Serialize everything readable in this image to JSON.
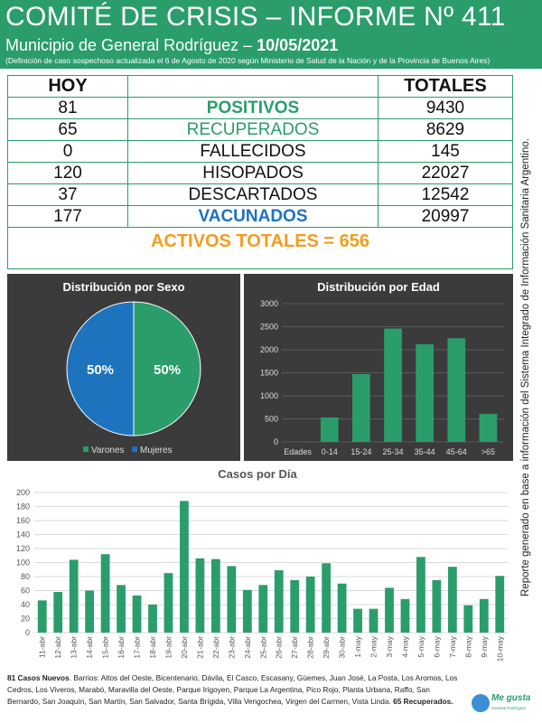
{
  "header": {
    "title": "COMITÉ DE CRISIS – INFORME Nº 411",
    "subtitle_prefix": "Municipio de General Rodríguez – ",
    "date": "10/05/2021",
    "note": "(Definición de caso sospechoso actualizada el 6 de Agosto de 2020 según Ministerio de Salud de la Nación y de la Provincia de Buenos Aires)"
  },
  "summary": {
    "col_hoy": "HOY",
    "col_totales": "TOTALES",
    "rows": [
      {
        "hoy": "81",
        "label": "POSITIVOS",
        "total": "9430"
      },
      {
        "hoy": "65",
        "label": "RECUPERADOS",
        "total": "8629"
      },
      {
        "hoy": "0",
        "label": "FALLECIDOS",
        "total": "145"
      },
      {
        "hoy": "120",
        "label": "HISOPADOS",
        "total": "22027"
      },
      {
        "hoy": "37",
        "label": "DESCARTADOS",
        "total": "12542"
      },
      {
        "hoy": "177",
        "label": "VACUNADOS",
        "total": "20997"
      }
    ],
    "activos": "ACTIVOS TOTALES = 656"
  },
  "colors": {
    "green": "#2a9d6b",
    "blue": "#1e73be",
    "orange": "#f39c1f",
    "panel": "#3b3b3b"
  },
  "chart_data": [
    {
      "type": "pie",
      "title": "Distribución por Sexo",
      "categories": [
        "Varones",
        "Mujeres"
      ],
      "values": [
        50,
        50
      ],
      "labels": [
        "50%",
        "50%"
      ],
      "colors": [
        "#2a9d6b",
        "#1e73be"
      ],
      "legend": "bottom"
    },
    {
      "type": "bar",
      "title": "Distribución por Edad",
      "categories": [
        "Edades",
        "0-14",
        "15-24",
        "25-34",
        "35-44",
        "45-64",
        ">65"
      ],
      "values": [
        0,
        530,
        1470,
        2460,
        2120,
        2250,
        610
      ],
      "ylim": [
        0,
        3000
      ],
      "yticks": [
        0,
        500,
        1000,
        1500,
        2000,
        2500,
        3000
      ],
      "grid": true
    },
    {
      "type": "bar",
      "title": "Casos por Día",
      "categories": [
        "11-abr",
        "12-abr",
        "13-abr",
        "14-abr",
        "15-abr",
        "16-abr",
        "17-abr",
        "18-abr",
        "19-abr",
        "20-abr",
        "21-abr",
        "22-abr",
        "23-abr",
        "24-abr",
        "25-abr",
        "26-abr",
        "27-abr",
        "28-abr",
        "29-abr",
        "30-abr",
        "1-may",
        "2-may",
        "3-may",
        "4-may",
        "5-may",
        "6-may",
        "7-may",
        "8-may",
        "9-may",
        "10-may"
      ],
      "values": [
        46,
        58,
        104,
        60,
        112,
        68,
        53,
        40,
        85,
        188,
        106,
        105,
        95,
        61,
        68,
        89,
        75,
        80,
        99,
        70,
        34,
        34,
        64,
        48,
        108,
        75,
        94,
        39,
        48,
        81
      ],
      "ylim": [
        0,
        200
      ],
      "yticks": [
        0,
        20,
        40,
        60,
        80,
        100,
        120,
        140,
        160,
        180,
        200
      ],
      "grid": true
    }
  ],
  "footer": {
    "new_cases": "81 Casos Nuevos",
    "barrios": ". Barrios: Altos del Oeste, Bicentenario, Dávila, El Casco, Escasany, Güemes, Juan José, La Posta, Los Aromos, Los Cedros, Los Viveros, Marabó, Maravilla del Oeste, Parque Irigoyen, Parque La Argentina, Pico Rojo, Planta Urbana, Raffo, San Bernardo, San Joaquín, San Martín, San Salvador, Santa Brígida, Villa Vengochea, Virgen del Carmen, Vista Linda. ",
    "recuperados": "65 Recuperados."
  },
  "side_note": "Reporte generado en base a información del Sistema Integrado de Información Sanitaria Argentino.",
  "logo": {
    "text": "Me gusta",
    "sub": "General Rodríguez"
  }
}
